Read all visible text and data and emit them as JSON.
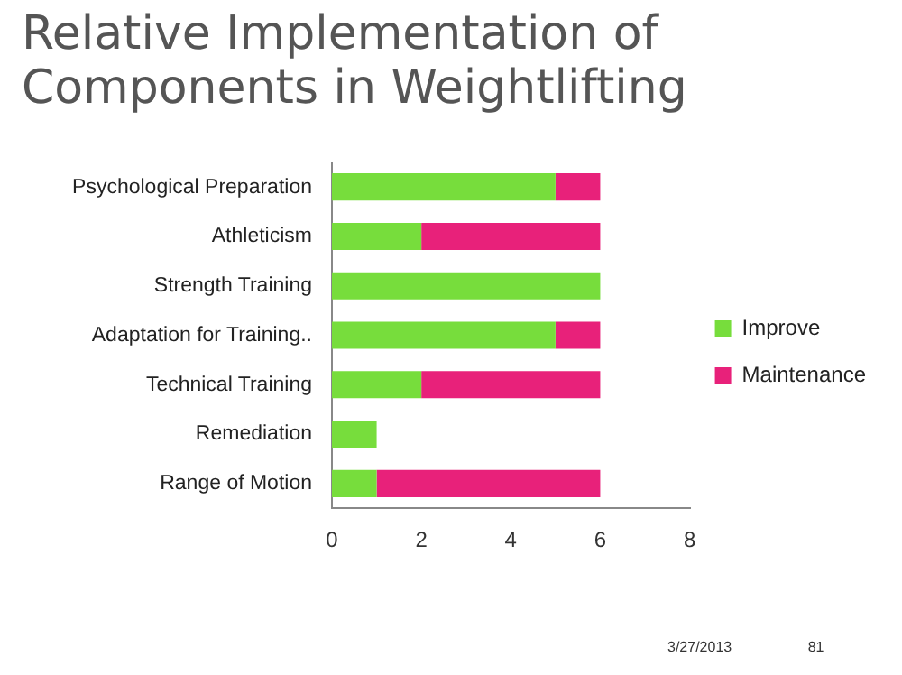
{
  "chart_data": {
    "type": "bar",
    "orientation": "horizontal",
    "stacked": true,
    "title": "Relative Implementation of Components in Weightlifting",
    "categories": [
      "Psychological Preparation",
      "Athleticism",
      "Strength Training",
      "Adaptation for Training..",
      "Technical Training",
      "Remediation",
      "Range of Motion"
    ],
    "series": [
      {
        "name": "Improve",
        "color": "#77dd3c",
        "values": [
          5,
          2,
          6,
          5,
          2,
          1,
          1
        ]
      },
      {
        "name": "Maintenance",
        "color": "#e8217a",
        "values": [
          1,
          4,
          0,
          1,
          4,
          0,
          5
        ]
      }
    ],
    "xlim": [
      0,
      8
    ],
    "xticks": [
      0,
      2,
      4,
      6,
      8
    ],
    "grid": false,
    "legend": "right",
    "annotations": [
      "3/27/2013",
      "81"
    ]
  }
}
